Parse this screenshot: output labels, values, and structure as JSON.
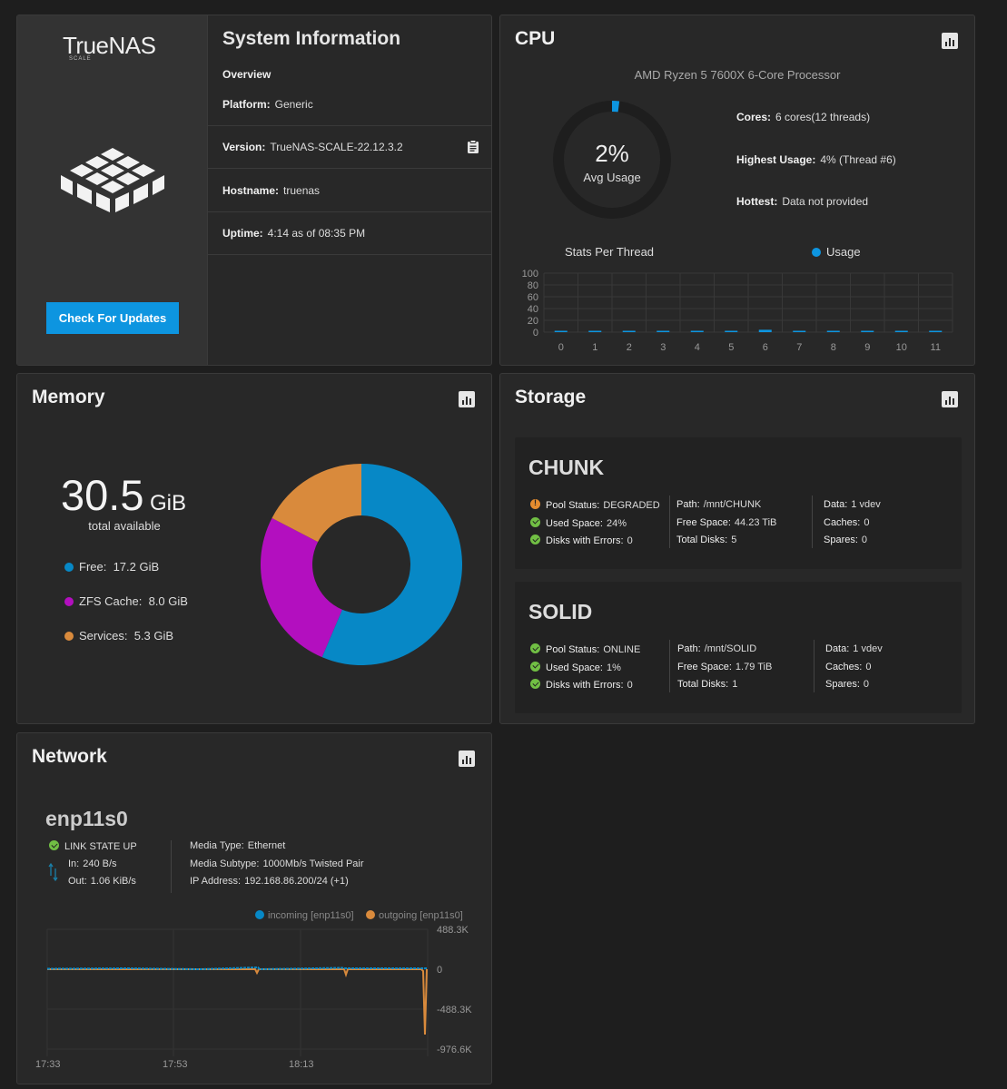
{
  "system": {
    "brand": "TrueNAS",
    "brand_sub": "SCALE",
    "check_updates": "Check For Updates",
    "title": "System Information",
    "overview": "Overview",
    "platform_label": "Platform:",
    "platform": "Generic",
    "version_label": "Version:",
    "version": "TrueNAS-SCALE-22.12.3.2",
    "hostname_label": "Hostname:",
    "hostname": "truenas",
    "uptime_label": "Uptime:",
    "uptime": "4:14 as of 08:35 PM"
  },
  "cpu": {
    "title": "CPU",
    "model": "AMD Ryzen 5 7600X 6-Core Processor",
    "avg_value": "2%",
    "avg_label": "Avg Usage",
    "avg_fraction": 0.02,
    "cores_label": "Cores:",
    "cores": "6 cores(12 threads)",
    "highest_label": "Highest Usage:",
    "highest": "4%  (Thread #6)",
    "hottest_label": "Hottest:",
    "hottest": "Data not provided",
    "stats_title": "Stats Per Thread",
    "usage_legend": "Usage",
    "accent": "#0d95e0"
  },
  "chart_data": {
    "type": "bar",
    "title": "Stats Per Thread",
    "categories": [
      "0",
      "1",
      "2",
      "3",
      "4",
      "5",
      "6",
      "7",
      "8",
      "9",
      "10",
      "11"
    ],
    "series": [
      {
        "name": "Usage",
        "values": [
          2,
          2,
          2,
          2,
          2,
          2,
          4,
          1,
          1,
          2,
          2,
          1
        ]
      }
    ],
    "yticks": [
      "100",
      "80",
      "60",
      "40",
      "20",
      "0"
    ],
    "ylim": [
      0,
      100
    ],
    "grid": true,
    "legend": "top-right"
  },
  "memory": {
    "title": "Memory",
    "total": "30.5",
    "unit": "GiB",
    "total_label": "total available",
    "items": [
      {
        "label": "Free:",
        "value": "17.2 GiB",
        "amount": 17.2,
        "color": "#0788c6"
      },
      {
        "label": "ZFS Cache:",
        "value": "8.0 GiB",
        "amount": 8.0,
        "color": "#b30fbf"
      },
      {
        "label": "Services:",
        "value": "5.3 GiB",
        "amount": 5.3,
        "color": "#d98a3c"
      }
    ]
  },
  "storage": {
    "title": "Storage",
    "pools": [
      {
        "name": "CHUNK",
        "status_label": "Pool Status:",
        "status": "DEGRADED",
        "status_icon": "warning-icon",
        "used_label": "Used Space:",
        "used": "24%",
        "errors_label": "Disks with Errors:",
        "errors": "0",
        "path_label": "Path:",
        "path": "/mnt/CHUNK",
        "free_label": "Free Space:",
        "free": "44.23 TiB",
        "disks_label": "Total Disks:",
        "disks": "5",
        "data_label": "Data:",
        "data": "1 vdev",
        "caches_label": "Caches:",
        "caches": "0",
        "spares_label": "Spares:",
        "spares": "0"
      },
      {
        "name": "SOLID",
        "status_label": "Pool Status:",
        "status": "ONLINE",
        "status_icon": "check-circle-icon",
        "used_label": "Used Space:",
        "used": "1%",
        "errors_label": "Disks with Errors:",
        "errors": "0",
        "path_label": "Path:",
        "path": "/mnt/SOLID",
        "free_label": "Free Space:",
        "free": "1.79 TiB",
        "disks_label": "Total Disks:",
        "disks": "1",
        "data_label": "Data:",
        "data": "1 vdev",
        "caches_label": "Caches:",
        "caches": "0",
        "spares_label": "Spares:",
        "spares": "0"
      }
    ]
  },
  "network": {
    "title": "Network",
    "interface": "enp11s0",
    "link_state": "LINK STATE UP",
    "in_label": "In:",
    "in": "240 B/s",
    "out_label": "Out:",
    "out": "1.06 KiB/s",
    "media_type_label": "Media Type:",
    "media_type": "Ethernet",
    "media_subtype_label": "Media Subtype:",
    "media_subtype": "1000Mb/s Twisted Pair",
    "ip_label": "IP Address:",
    "ip": "192.168.86.200/24 (+1)",
    "legend_incoming": "incoming [enp11s0]",
    "legend_outgoing": "outgoing [enp11s0]",
    "incoming_color": "#0788c6",
    "outgoing_color": "#d98a3c",
    "yticks": [
      "488.3K",
      "0",
      "-488.3K",
      "-976.6K"
    ],
    "xticks": [
      "17:33",
      "17:53",
      "18:13"
    ]
  }
}
